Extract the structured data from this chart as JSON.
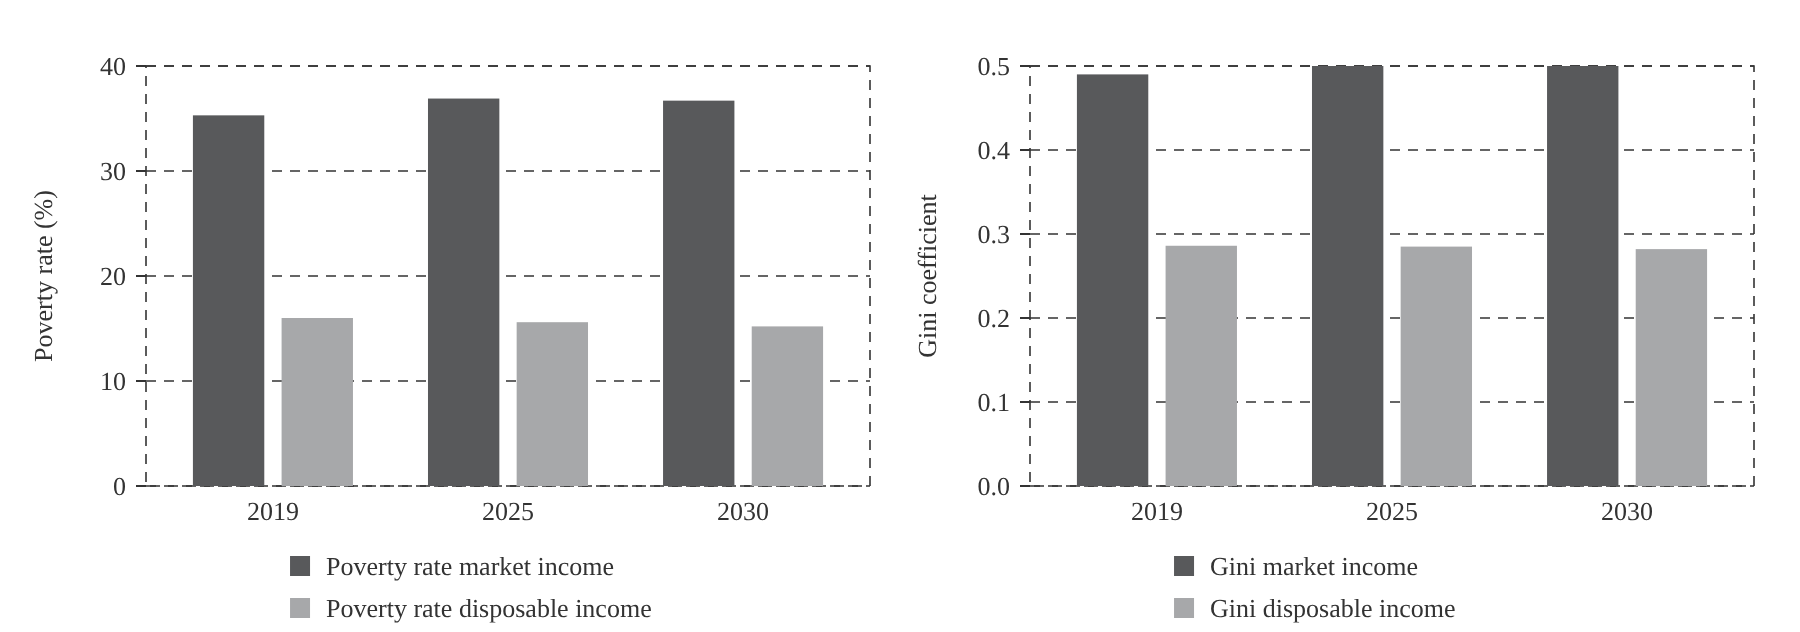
{
  "chart_data": [
    {
      "type": "bar",
      "ylabel": "Poverty rate (%)",
      "categories": [
        "2019",
        "2025",
        "2030"
      ],
      "series": [
        {
          "name": "Poverty rate market income",
          "color": "#58595b",
          "values": [
            35.3,
            36.9,
            36.7
          ]
        },
        {
          "name": "Poverty rate disposable income",
          "color": "#a7a8aa",
          "values": [
            16.0,
            15.6,
            15.2
          ]
        }
      ],
      "ylim": [
        0,
        40
      ],
      "yticks": [
        0,
        10,
        20,
        30,
        40
      ],
      "grid": "y",
      "legend": "bottom"
    },
    {
      "type": "bar",
      "ylabel": "Gini coefficient",
      "categories": [
        "2019",
        "2025",
        "2030"
      ],
      "series": [
        {
          "name": "Gini market income",
          "color": "#58595b",
          "values": [
            0.49,
            0.5,
            0.5
          ]
        },
        {
          "name": "Gini disposable income",
          "color": "#a7a8aa",
          "values": [
            0.286,
            0.285,
            0.282
          ]
        }
      ],
      "ylim": [
        0,
        0.5
      ],
      "yticks": [
        {
          "value": 0,
          "label": "0.0"
        },
        0.1,
        0.2,
        0.3,
        0.4,
        0.5
      ],
      "grid": "y",
      "legend": "bottom"
    }
  ]
}
